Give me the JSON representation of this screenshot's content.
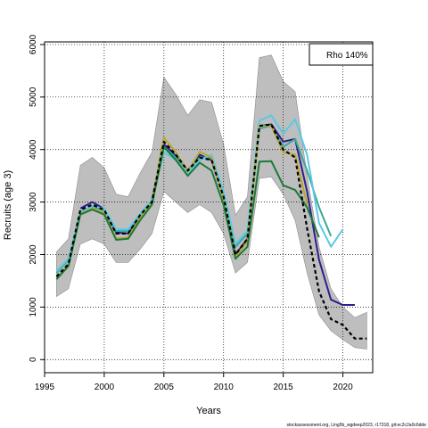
{
  "chart_data": {
    "type": "line",
    "title": "",
    "xlabel": "Years",
    "ylabel": "Recruits (age 3)",
    "xlim": [
      1995,
      2022.5
    ],
    "ylim": [
      -250,
      6050
    ],
    "xticks": [
      1995,
      2000,
      2005,
      2010,
      2015,
      2020
    ],
    "yticks": [
      0,
      1000,
      2000,
      3000,
      4000,
      5000,
      6000
    ],
    "grid": true,
    "legend_text": "Rho 140%",
    "legend_position": "top-right",
    "footer": "stockassessment.org, Ling5b_wgdeep2023, r17318, git:ec2c2a0c6dde",
    "ci_band": {
      "x": [
        1996,
        1997,
        1998,
        1999,
        2000,
        2001,
        2002,
        2003,
        2004,
        2005,
        2006,
        2007,
        2008,
        2009,
        2010,
        2011,
        2012,
        2013,
        2014,
        2015,
        2016,
        2017,
        2018,
        2019,
        2020,
        2021,
        2022
      ],
      "upper": [
        2050,
        2300,
        3700,
        3850,
        3650,
        3150,
        3100,
        3550,
        3950,
        5380,
        5050,
        4650,
        4950,
        4900,
        4100,
        2750,
        3100,
        5750,
        5800,
        5300,
        5100,
        3500,
        2150,
        1350,
        1000,
        800,
        900
      ],
      "lower": [
        1200,
        1350,
        2200,
        2300,
        2200,
        1850,
        1850,
        2100,
        2400,
        3200,
        3000,
        2800,
        2950,
        2800,
        2400,
        1650,
        1850,
        3450,
        3480,
        3150,
        2650,
        1650,
        850,
        550,
        380,
        230,
        200
      ],
      "color": "#bebebe"
    },
    "series": [
      {
        "color": "#000000",
        "dashed": true,
        "x": [
          1996,
          1997,
          1998,
          1999,
          2000,
          2001,
          2002,
          2003,
          2004,
          2005,
          2006,
          2007,
          2008,
          2009,
          2010,
          2011,
          2012,
          2013,
          2014,
          2015,
          2016,
          2017,
          2018,
          2019,
          2020,
          2021,
          2022
        ],
        "values": [
          1580,
          1820,
          2850,
          2950,
          2850,
          2400,
          2400,
          2750,
          3000,
          4150,
          3900,
          3600,
          3850,
          3800,
          3100,
          2000,
          2300,
          4450,
          4480,
          4000,
          3850,
          2500,
          1300,
          770,
          660,
          400,
          400
        ]
      },
      {
        "color": "#2e1e8c",
        "x": [
          1998,
          1999,
          2000,
          2001,
          2002,
          2003,
          2004,
          2005,
          2006,
          2007,
          2008,
          2009,
          2010,
          2011,
          2012,
          2013,
          2014,
          2015,
          2016,
          2017,
          2018,
          2019,
          2020,
          2021
        ],
        "values": [
          2880,
          3000,
          2870,
          2420,
          2400,
          2750,
          3050,
          4100,
          3880,
          3600,
          3900,
          3800,
          3100,
          2000,
          2300,
          4450,
          4480,
          4150,
          4200,
          3200,
          1900,
          1140,
          1040,
          1040
        ]
      },
      {
        "color": "#3aa89a",
        "x": [
          1996,
          1997,
          1998,
          1999,
          2000,
          2001,
          2002,
          2003,
          2004,
          2005,
          2006,
          2007,
          2008,
          2009,
          2010,
          2011,
          2012,
          2013,
          2014,
          2015,
          2016,
          2017,
          2018,
          2019
        ],
        "values": [
          1650,
          1900,
          2800,
          2900,
          2850,
          2450,
          2450,
          2750,
          3050,
          4050,
          3850,
          3600,
          3850,
          3850,
          3100,
          2150,
          2400,
          4400,
          4450,
          4050,
          4200,
          3600,
          2900,
          2350
        ]
      },
      {
        "color": "#5ac8e6",
        "x": [
          1996,
          1997,
          1998,
          1999,
          2000,
          2001,
          2002,
          2003,
          2004,
          2005,
          2006,
          2007,
          2008,
          2009,
          2010,
          2011,
          2012,
          2013,
          2014,
          2015,
          2016,
          2017,
          2018,
          2019,
          2020
        ],
        "values": [
          1680,
          1920,
          2820,
          2920,
          2880,
          2480,
          2480,
          2780,
          3050,
          3950,
          3800,
          3550,
          3800,
          3900,
          3200,
          2200,
          2450,
          4550,
          4650,
          4300,
          4580,
          3900,
          2600,
          2150,
          2480
        ]
      },
      {
        "color": "#b8a830",
        "x": [
          1996,
          1997,
          1998,
          1999,
          2000,
          2001,
          2002,
          2003,
          2004,
          2005,
          2006,
          2007,
          2008,
          2009,
          2010,
          2011,
          2012,
          2013,
          2014,
          2015,
          2016,
          2017
        ],
        "values": [
          1550,
          1800,
          2780,
          2880,
          2800,
          2300,
          2330,
          2700,
          3000,
          4230,
          3950,
          3580,
          3960,
          3850,
          3050,
          1950,
          2250,
          4450,
          4450,
          3950,
          3900,
          2950
        ]
      },
      {
        "color": "#1a7a3a",
        "x": [
          1996,
          1997,
          1998,
          1999,
          2000,
          2001,
          2002,
          2003,
          2004,
          2005,
          2006,
          2007,
          2008,
          2009,
          2010,
          2011,
          2012,
          2013,
          2014,
          2015,
          2016,
          2017,
          2018
        ],
        "values": [
          1530,
          1780,
          2760,
          2860,
          2760,
          2280,
          2300,
          2650,
          2950,
          4050,
          3800,
          3500,
          3750,
          3600,
          2950,
          1920,
          2150,
          3770,
          3780,
          3320,
          3230,
          2900,
          2330
        ]
      }
    ]
  }
}
